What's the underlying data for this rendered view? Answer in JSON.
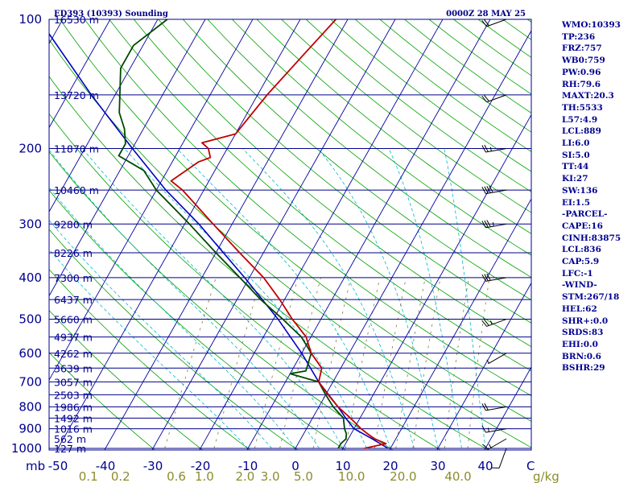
{
  "header": {
    "station": "ED393 (10393) Sounding",
    "valid_time": "0000Z 28 MAY 25"
  },
  "colors": {
    "frame": "#000090",
    "isobar": "#00008a",
    "isotherm": "#0000a0",
    "dry_adiabat": "#00a000",
    "moist_adiabat": "#00b8d0",
    "mixing_ratio": "#808040",
    "temperature": "#c00000",
    "dewpoint": "#004800",
    "parcel": "#0000c0",
    "wind": "#000000",
    "mixing_label": "#8c8c2c",
    "label": "#000090"
  },
  "chart_data": {
    "type": "skew-t log-p sounding",
    "title": "ED393 (10393) Sounding",
    "subtitle": "0000Z 28 MAY 25",
    "xlabel": "C",
    "ylabel": "mb",
    "pressure_range_hpa": [
      1000,
      100
    ],
    "temperature_range_c": [
      -50,
      50
    ],
    "log_pressure_axis": true,
    "isobars_hpa": [
      1000,
      900,
      850,
      800,
      750,
      700,
      650,
      600,
      550,
      500,
      450,
      400,
      350,
      300,
      250,
      200,
      150,
      100
    ],
    "pressure_tick_labels": [
      1000,
      900,
      800,
      700,
      600,
      500,
      400,
      300,
      200,
      100
    ],
    "temperature_tick_labels": [
      -50,
      -40,
      -30,
      -20,
      -10,
      0,
      10,
      20,
      30,
      40
    ],
    "height_labels": [
      {
        "p": 1000,
        "text": "127 m"
      },
      {
        "p": 950,
        "text": "562 m"
      },
      {
        "p": 900,
        "text": "1016 m"
      },
      {
        "p": 850,
        "text": "1492 m"
      },
      {
        "p": 800,
        "text": "1986 m"
      },
      {
        "p": 750,
        "text": "2503 m"
      },
      {
        "p": 700,
        "text": "3057 m"
      },
      {
        "p": 650,
        "text": "3639 m"
      },
      {
        "p": 600,
        "text": "4262 m"
      },
      {
        "p": 550,
        "text": "4937 m"
      },
      {
        "p": 500,
        "text": "5660 m"
      },
      {
        "p": 450,
        "text": "6437 m"
      },
      {
        "p": 400,
        "text": "7300 m"
      },
      {
        "p": 350,
        "text": "8226 m"
      },
      {
        "p": 300,
        "text": "9280 m"
      },
      {
        "p": 250,
        "text": "10460 m"
      },
      {
        "p": 200,
        "text": "11870 m"
      },
      {
        "p": 150,
        "text": "13720 m"
      },
      {
        "p": 100,
        "text": "16530 m"
      }
    ],
    "mixing_ratio_labels": [
      {
        "w": 0.1,
        "text": "0.1"
      },
      {
        "w": 0.2,
        "text": "0.2"
      },
      {
        "w": 0.6,
        "text": "0.6"
      },
      {
        "w": 1.0,
        "text": "1.0"
      },
      {
        "w": 2.0,
        "text": "2.0"
      },
      {
        "w": 3.0,
        "text": "3.0"
      },
      {
        "w": 5.0,
        "text": "5.0"
      },
      {
        "w": 10.0,
        "text": "10.0"
      },
      {
        "w": 20.0,
        "text": "20.0"
      },
      {
        "w": 40.0,
        "text": "40.0"
      }
    ],
    "mixing_ratio_unit": "g/kg",
    "temperature_profile": [
      {
        "p": 1000,
        "t": 14.5
      },
      {
        "p": 975,
        "t": 18.5
      },
      {
        "p": 950,
        "t": 15.5
      },
      {
        "p": 925,
        "t": 13.5
      },
      {
        "p": 900,
        "t": 11.5
      },
      {
        "p": 850,
        "t": 8.0
      },
      {
        "p": 800,
        "t": 4.0
      },
      {
        "p": 750,
        "t": 0.5
      },
      {
        "p": 700,
        "t": -3.0
      },
      {
        "p": 650,
        "t": -4.0
      },
      {
        "p": 600,
        "t": -8.0
      },
      {
        "p": 550,
        "t": -11.0
      },
      {
        "p": 500,
        "t": -16.0
      },
      {
        "p": 450,
        "t": -21.0
      },
      {
        "p": 400,
        "t": -27.0
      },
      {
        "p": 350,
        "t": -35.0
      },
      {
        "p": 300,
        "t": -44.0
      },
      {
        "p": 250,
        "t": -54.5
      },
      {
        "p": 238,
        "t": -58.0
      },
      {
        "p": 215,
        "t": -54.5
      },
      {
        "p": 210,
        "t": -52.5
      },
      {
        "p": 200,
        "t": -54.0
      },
      {
        "p": 194,
        "t": -56.0
      },
      {
        "p": 185,
        "t": -50.0
      },
      {
        "p": 150,
        "t": -48.0
      },
      {
        "p": 120,
        "t": -45.0
      },
      {
        "p": 100,
        "t": -42.5
      }
    ],
    "dewpoint_profile": [
      {
        "p": 1000,
        "td": 9.0
      },
      {
        "p": 975,
        "td": 9.0
      },
      {
        "p": 950,
        "td": 9.5
      },
      {
        "p": 925,
        "td": 9.0
      },
      {
        "p": 900,
        "td": 8.0
      },
      {
        "p": 850,
        "td": 6.5
      },
      {
        "p": 800,
        "td": 3.0
      },
      {
        "p": 750,
        "td": 0.0
      },
      {
        "p": 700,
        "td": -3.0
      },
      {
        "p": 670,
        "td": -10.0
      },
      {
        "p": 660,
        "td": -7.0
      },
      {
        "p": 600,
        "td": -8.0
      },
      {
        "p": 550,
        "td": -12.0
      },
      {
        "p": 500,
        "td": -18.0
      },
      {
        "p": 450,
        "td": -25.0
      },
      {
        "p": 400,
        "td": -32.0
      },
      {
        "p": 350,
        "td": -40.0
      },
      {
        "p": 300,
        "td": -49.0
      },
      {
        "p": 250,
        "td": -60.0
      },
      {
        "p": 225,
        "td": -65.0
      },
      {
        "p": 208,
        "td": -72.0
      },
      {
        "p": 195,
        "td": -72.0
      },
      {
        "p": 180,
        "td": -74.0
      },
      {
        "p": 165,
        "td": -77.0
      },
      {
        "p": 150,
        "td": -79.0
      },
      {
        "p": 130,
        "td": -82.0
      },
      {
        "p": 115,
        "td": -82.0
      },
      {
        "p": 100,
        "td": -78.0
      }
    ],
    "parcel_profile": [
      {
        "p": 1000,
        "t": 19.5
      },
      {
        "p": 950,
        "t": 15.0
      },
      {
        "p": 900,
        "t": 10.0
      },
      {
        "p": 850,
        "t": 7.0
      },
      {
        "p": 800,
        "t": 4.0
      },
      {
        "p": 700,
        "t": -3.0
      },
      {
        "p": 600,
        "t": -10.0
      },
      {
        "p": 500,
        "t": -19.0
      },
      {
        "p": 400,
        "t": -31.0
      },
      {
        "p": 300,
        "t": -47.0
      },
      {
        "p": 250,
        "t": -58.0
      },
      {
        "p": 200,
        "t": -70.0
      },
      {
        "p": 150,
        "t": -85.0
      },
      {
        "p": 100,
        "t": -105.0
      }
    ],
    "wind_barbs": [
      {
        "p": 1000,
        "dir": 200,
        "kt": 10
      },
      {
        "p": 950,
        "dir": 240,
        "kt": 15
      },
      {
        "p": 900,
        "dir": 260,
        "kt": 15
      },
      {
        "p": 800,
        "dir": 260,
        "kt": 20
      },
      {
        "p": 600,
        "dir": 240,
        "kt": 5
      },
      {
        "p": 500,
        "dir": 250,
        "kt": 25
      },
      {
        "p": 400,
        "dir": 260,
        "kt": 30
      },
      {
        "p": 300,
        "dir": 260,
        "kt": 35
      },
      {
        "p": 250,
        "dir": 260,
        "kt": 40
      },
      {
        "p": 200,
        "dir": 260,
        "kt": 25
      },
      {
        "p": 150,
        "dir": 250,
        "kt": 20
      },
      {
        "p": 100,
        "dir": 250,
        "kt": 20
      }
    ]
  },
  "indices": [
    "WMO:10393",
    "TP:236",
    "FRZ:757",
    "WB0:759",
    "PW:0.96",
    "RH:79.6",
    "MAXT:20.3",
    "TH:5533",
    "L57:4.9",
    "LCL:889",
    "LI:6.0",
    "SI:5.0",
    "TT:44",
    "KI:27",
    "SW:136",
    "EI:1.5",
    "-PARCEL-",
    "CAPE:16",
    "CINH:83875",
    "LCL:836",
    "CAP:5.9",
    "LFC:-1",
    "-WIND-",
    "STM:267/18",
    "HEL:62",
    "SHR+:0.0",
    "SRDS:83",
    "EHI:0.0",
    "BRN:0.6",
    "BSHR:29"
  ]
}
